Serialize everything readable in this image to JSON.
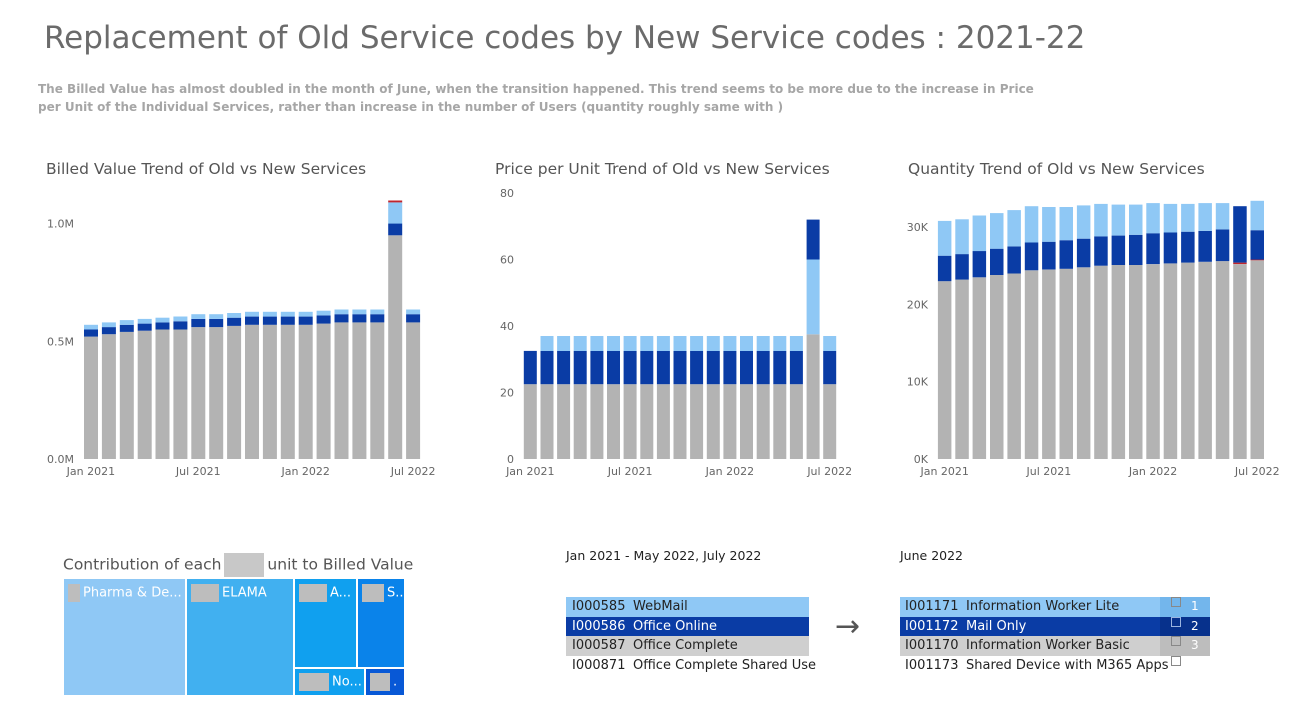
{
  "page": {
    "title": "Replacement of Old Service codes by New Service codes : 2021-22",
    "subtitle": "The Billed Value has almost doubled in the month of June, when the transition happened. This trend seems to be more due to the increase in Price per Unit of the Individual Services, rather than increase in the number of Users (quantity roughly same with )"
  },
  "colors": {
    "grey": "#b3b3b3",
    "dark_blue": "#0a3ca5",
    "light_blue": "#8fc8f5",
    "red": "#c0262d",
    "sky": "#41b0f0",
    "azure": "#10a0ef",
    "mid_blue": "#0a83ea",
    "deep_blue": "#0858d6"
  },
  "chart_data": [
    {
      "type": "bar",
      "stacked": true,
      "title": "Billed Value Trend of Old vs New Services",
      "x_tick_labels": [
        "Jan 2021",
        "Jul 2021",
        "Jan 2022",
        "Jul 2022"
      ],
      "y_tick_labels": [
        "0.0M",
        "0.5M",
        "1.0M"
      ],
      "ylim": [
        0,
        1.1
      ],
      "categories": [
        "Jan 2021",
        "Feb 2021",
        "Mar 2021",
        "Apr 2021",
        "May 2021",
        "Jun 2021",
        "Jul 2021",
        "Aug 2021",
        "Sep 2021",
        "Oct 2021",
        "Nov 2021",
        "Dec 2021",
        "Jan 2022",
        "Feb 2022",
        "Mar 2022",
        "Apr 2022",
        "May 2022",
        "Jun 2022",
        "Jul 2022"
      ],
      "series": [
        {
          "color": "#b3b3b3",
          "values": [
            0.52,
            0.53,
            0.54,
            0.545,
            0.55,
            0.55,
            0.56,
            0.56,
            0.565,
            0.57,
            0.57,
            0.57,
            0.57,
            0.575,
            0.58,
            0.58,
            0.58,
            0.95,
            0.58
          ]
        },
        {
          "color": "#0a3ca5",
          "values": [
            0.03,
            0.03,
            0.03,
            0.03,
            0.03,
            0.035,
            0.035,
            0.035,
            0.035,
            0.035,
            0.035,
            0.035,
            0.035,
            0.035,
            0.035,
            0.035,
            0.035,
            0.05,
            0.035
          ]
        },
        {
          "color": "#8fc8f5",
          "values": [
            0.02,
            0.02,
            0.02,
            0.02,
            0.02,
            0.02,
            0.02,
            0.02,
            0.02,
            0.02,
            0.02,
            0.02,
            0.02,
            0.02,
            0.02,
            0.02,
            0.02,
            0.09,
            0.02
          ]
        },
        {
          "color": "#c0262d",
          "values": [
            0,
            0,
            0,
            0,
            0,
            0,
            0,
            0,
            0,
            0,
            0,
            0,
            0,
            0,
            0,
            0,
            0,
            0.008,
            0
          ]
        }
      ]
    },
    {
      "type": "bar",
      "stacked": true,
      "title": "Price per Unit Trend of Old vs New Services",
      "x_tick_labels": [
        "Jan 2021",
        "Jul 2021",
        "Jan 2022",
        "Jul 2022"
      ],
      "y_tick_labels": [
        "0",
        "20",
        "40",
        "60",
        "80"
      ],
      "ylim": [
        0,
        80
      ],
      "categories": [
        "Jan 2021",
        "Feb 2021",
        "Mar 2021",
        "Apr 2021",
        "May 2021",
        "Jun 2021",
        "Jul 2021",
        "Aug 2021",
        "Sep 2021",
        "Oct 2021",
        "Nov 2021",
        "Dec 2021",
        "Jan 2022",
        "Feb 2022",
        "Mar 2022",
        "Apr 2022",
        "May 2022",
        "Jun 2022",
        "Jul 2022"
      ],
      "series": [
        {
          "color": "#b3b3b3",
          "values": [
            22.5,
            22.5,
            22.5,
            22.5,
            22.5,
            22.5,
            22.5,
            22.5,
            22.5,
            22.5,
            22.5,
            22.5,
            22.5,
            22.5,
            22.5,
            22.5,
            22.5,
            37.5,
            22.5
          ]
        },
        {
          "color": "#0a3ca5",
          "values": [
            10,
            10,
            10,
            10,
            10,
            10,
            10,
            10,
            10,
            10,
            10,
            10,
            10,
            10,
            10,
            10,
            10,
            0,
            10
          ]
        },
        {
          "color": "#8fc8f5",
          "values": [
            0,
            4.5,
            4.5,
            4.5,
            4.5,
            4.5,
            4.5,
            4.5,
            4.5,
            4.5,
            4.5,
            4.5,
            4.5,
            4.5,
            4.5,
            4.5,
            4.5,
            22.5,
            4.5
          ]
        },
        {
          "color": "#0a3ca5",
          "values": [
            0,
            0,
            0,
            0,
            0,
            0,
            0,
            0,
            0,
            0,
            0,
            0,
            0,
            0,
            0,
            0,
            0,
            12,
            0
          ]
        }
      ]
    },
    {
      "type": "bar",
      "stacked": true,
      "title": "Quantity Trend of Old vs New Services",
      "x_tick_labels": [
        "Jan 2021",
        "Jul 2021",
        "Jan 2022",
        "Jul 2022"
      ],
      "y_tick_labels": [
        "0K",
        "10K",
        "20K",
        "30K"
      ],
      "ylim": [
        0,
        33500
      ],
      "categories": [
        "Jan 2021",
        "Feb 2021",
        "Mar 2021",
        "Apr 2021",
        "May 2021",
        "Jun 2021",
        "Jul 2021",
        "Aug 2021",
        "Sep 2021",
        "Oct 2021",
        "Nov 2021",
        "Dec 2021",
        "Jan 2022",
        "Feb 2022",
        "Mar 2022",
        "Apr 2022",
        "May 2022",
        "Jun 2022",
        "Jul 2022"
      ],
      "series": [
        {
          "color": "#b3b3b3",
          "values": [
            23000,
            23200,
            23500,
            23800,
            24000,
            24400,
            24500,
            24600,
            24800,
            25000,
            25100,
            25100,
            25200,
            25300,
            25400,
            25500,
            25600,
            25200,
            25700
          ]
        },
        {
          "color": "#c0262d",
          "values": [
            0,
            0,
            0,
            0,
            0,
            0,
            0,
            0,
            0,
            0,
            0,
            0,
            0,
            0,
            0,
            0,
            0,
            200,
            100
          ]
        },
        {
          "color": "#0a3ca5",
          "values": [
            3300,
            3300,
            3400,
            3400,
            3500,
            3600,
            3600,
            3700,
            3700,
            3800,
            3800,
            3900,
            4000,
            4000,
            4000,
            4000,
            4100,
            3700,
            3800
          ]
        },
        {
          "color": "#8fc8f5",
          "values": [
            4500,
            4500,
            4600,
            4600,
            4700,
            4700,
            4500,
            4300,
            4300,
            4200,
            4000,
            3900,
            3900,
            3700,
            3600,
            3600,
            3400,
            0,
            3800
          ]
        },
        {
          "color": "#0a3ca5",
          "values": [
            0,
            0,
            0,
            0,
            0,
            0,
            0,
            0,
            0,
            0,
            0,
            0,
            0,
            0,
            0,
            0,
            0,
            3600,
            0
          ]
        }
      ]
    }
  ],
  "contribution": {
    "title_before": "Contribution of each",
    "title_after": "unit to Billed Value",
    "tiles": [
      {
        "label": "Pharma & De...",
        "color": "#8fc8f5"
      },
      {
        "label": "ELAMA",
        "color": "#41b0f0"
      },
      {
        "label": "A...",
        "color": "#10a0ef"
      },
      {
        "label": "S...",
        "color": "#0a83ea"
      },
      {
        "label": "No...",
        "color": "#10a0ef"
      },
      {
        "label": ".",
        "color": "#0858d6"
      }
    ]
  },
  "old_codes": {
    "period": "Jan 2021 - May 2022, July 2022",
    "rows": [
      {
        "code": "I000585",
        "name": "WebMail"
      },
      {
        "code": "I000586",
        "name": "Office Online"
      },
      {
        "code": "I000587",
        "name": "Office Complete"
      },
      {
        "code": "I000871",
        "name": "Office Complete Shared Use"
      }
    ]
  },
  "arrow_glyph": "→",
  "new_codes": {
    "period": "June 2022",
    "rows": [
      {
        "code": "I001171",
        "name": "Information Worker Lite",
        "number": "1"
      },
      {
        "code": "I001172",
        "name": "Mail Only",
        "number": "2"
      },
      {
        "code": "I001170",
        "name": "Information Worker Basic",
        "number": "3"
      },
      {
        "code": "I001173",
        "name": "Shared Device with M365 Apps",
        "number": ""
      }
    ]
  }
}
